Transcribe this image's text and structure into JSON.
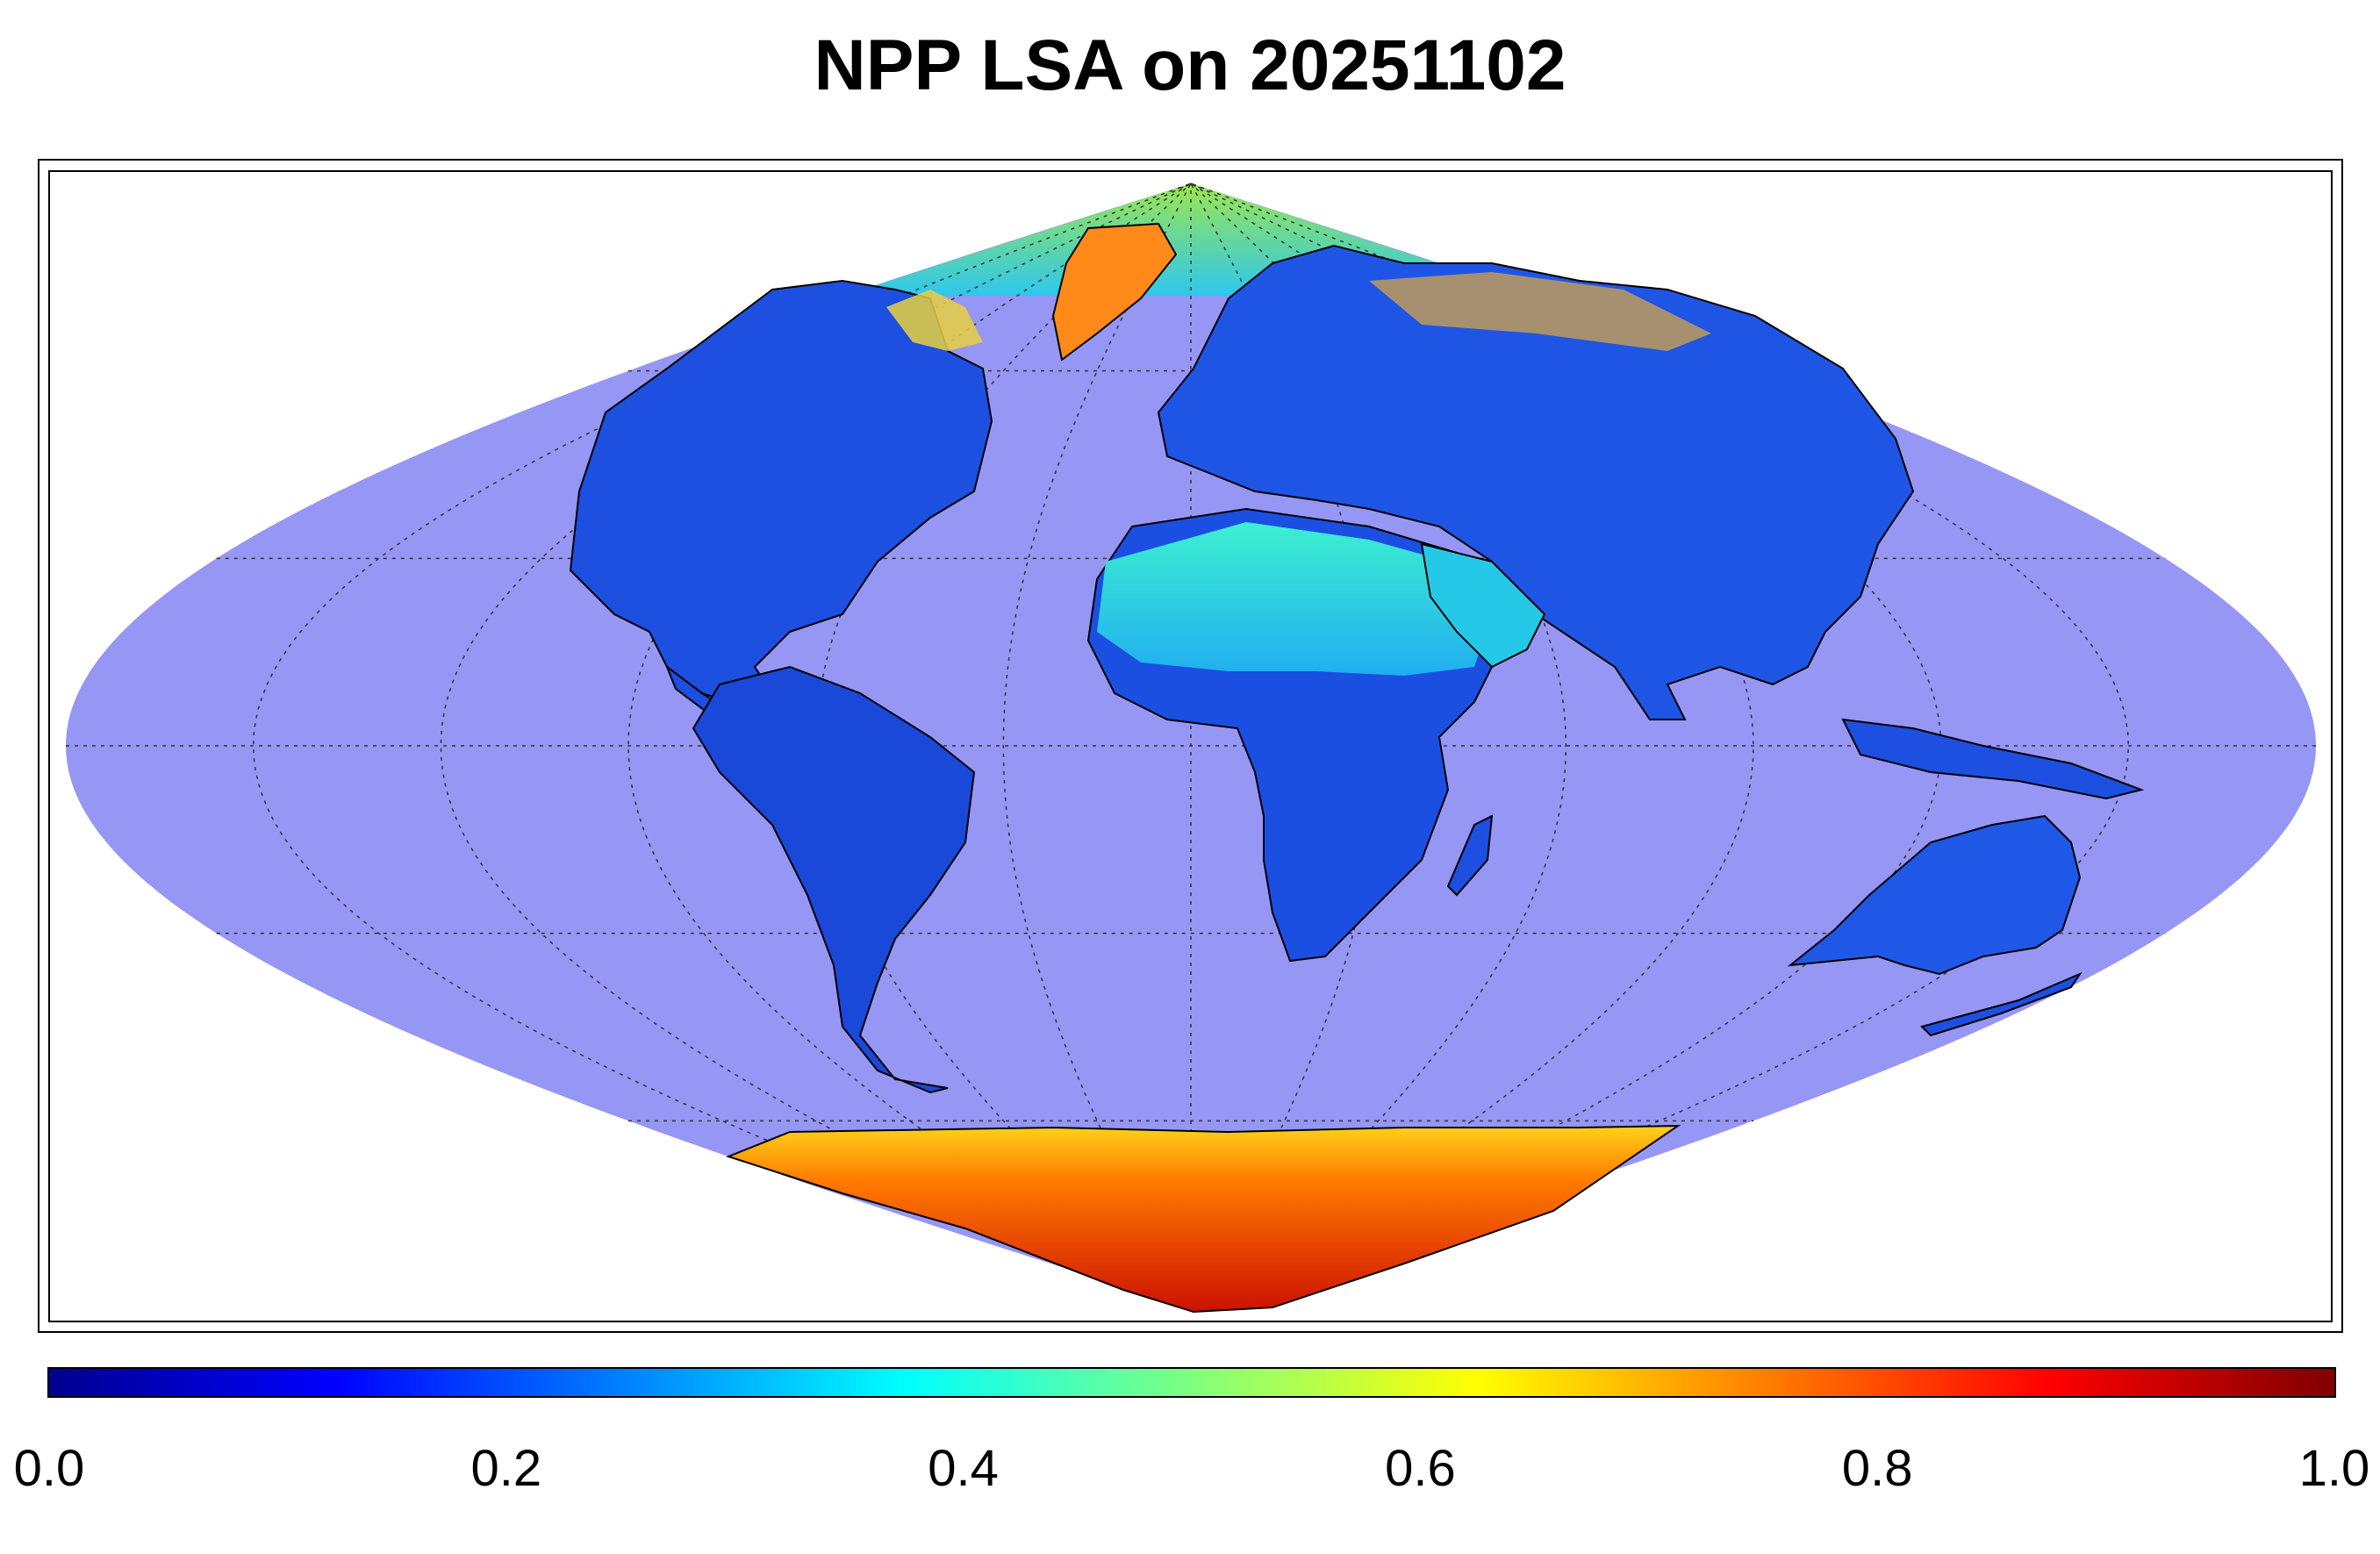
{
  "title": "NPP LSA on 20251102",
  "map": {
    "projection": "sinusoidal",
    "graticule": {
      "lon_step_deg": 30,
      "lat_step_deg": 30
    },
    "ocean_color": "#9696f5",
    "coastline_color": "#000000",
    "high_value_color": "#cc1a00",
    "land_low_color": "#1a4de6"
  },
  "colorbar": {
    "colormap": "jet",
    "min": 0.0,
    "max": 1.0,
    "tick_labels": [
      "0.0",
      "0.2",
      "0.4",
      "0.6",
      "0.8",
      "1.0"
    ],
    "tick_values": [
      0.0,
      0.2,
      0.4,
      0.6,
      0.8,
      1.0
    ]
  }
}
